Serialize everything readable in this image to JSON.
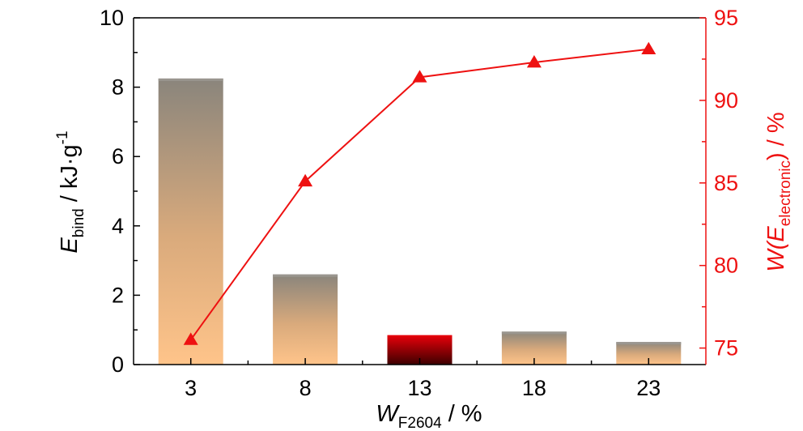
{
  "chart_data": {
    "type": "bar+line",
    "categories": [
      "3",
      "8",
      "13",
      "18",
      "23"
    ],
    "bar_series": {
      "name": "E_bind",
      "values": [
        8.25,
        2.6,
        0.85,
        0.95,
        0.65
      ],
      "highlight_index": 2,
      "colors": {
        "gradient_top": "#8a857c",
        "gradient_bottom": "#ffc48a",
        "highlight_top": "#e8000a",
        "highlight_bottom": "#3d0000"
      }
    },
    "line_series": {
      "name": "W(E_electronic)",
      "values": [
        75.5,
        85.1,
        91.4,
        92.3,
        93.1
      ],
      "color": "#ee1111",
      "marker": "triangle-up"
    },
    "x_axis": {
      "label_main": "W",
      "label_sub": "F2604",
      "label_unit": " / %",
      "ticks": [
        "3",
        "8",
        "13",
        "18",
        "23"
      ]
    },
    "y_left": {
      "label_main": "E",
      "label_sub": "bind",
      "label_unit": " / kJ·g",
      "label_sup": "-1",
      "ylim": [
        0,
        10
      ],
      "ticks": [
        "0",
        "2",
        "4",
        "6",
        "8",
        "10"
      ],
      "color": "#000000"
    },
    "y_right": {
      "label_main": "W(E",
      "label_sub": "electronic",
      "label_unit": ") / %",
      "ylim": [
        74,
        95
      ],
      "ticks": [
        "75",
        "80",
        "85",
        "90",
        "95"
      ],
      "color": "#ee1111"
    },
    "grid": false,
    "legend": "none"
  }
}
